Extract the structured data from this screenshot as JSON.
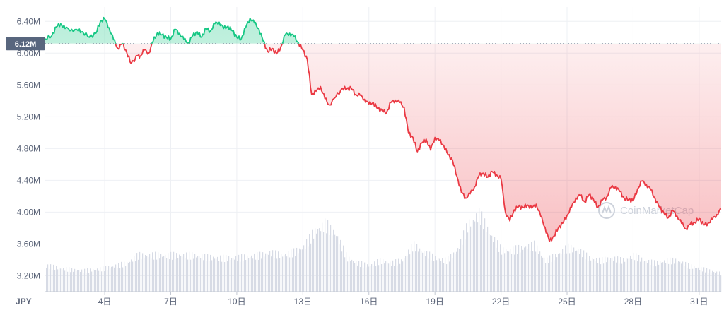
{
  "chart_data": {
    "type": "area",
    "currency_label": "JPY",
    "watermark": "CoinMarketCap",
    "y_ticks": [
      "6.40M",
      "6.00M",
      "5.60M",
      "5.20M",
      "4.80M",
      "4.40M",
      "4.00M",
      "3.60M",
      "3.20M"
    ],
    "y_tick_values": [
      6400000,
      6000000,
      5600000,
      5200000,
      4800000,
      4400000,
      4000000,
      3600000,
      3200000
    ],
    "x_ticks": [
      "4日",
      "7日",
      "10日",
      "13日",
      "16日",
      "19日",
      "22日",
      "25日",
      "28日",
      "31日"
    ],
    "x_tick_days": [
      4,
      7,
      10,
      13,
      16,
      19,
      22,
      25,
      28,
      31
    ],
    "xlim": [
      1.3,
      32.0
    ],
    "ylim": [
      3000000,
      6580000
    ],
    "baseline": {
      "label": "6.12M",
      "value": 6120000
    },
    "colors": {
      "up": "#16c784",
      "down": "#ea3943",
      "volume": "#d7dbe5",
      "grid": "#eef0f4",
      "badge": "#58667e"
    },
    "series": [
      {
        "x": [
          1.3,
          1.6,
          1.8,
          2.0,
          2.2,
          2.5,
          2.8,
          3.0,
          3.3,
          3.6,
          3.8,
          4.0,
          4.2,
          4.4,
          4.6,
          4.8,
          5.0,
          5.2,
          5.5,
          5.6,
          5.8,
          6.0,
          6.2,
          6.4,
          6.6,
          6.8,
          7.0,
          7.2,
          7.4,
          7.6,
          7.8,
          8.0,
          8.2,
          8.4,
          8.6,
          8.8,
          9.0,
          9.2,
          9.4,
          9.6,
          9.8,
          10.0,
          10.2,
          10.4,
          10.6,
          10.8,
          11.0,
          11.2,
          11.4,
          11.6,
          11.8,
          12.0,
          12.2,
          12.4,
          12.6,
          12.8,
          13.0,
          13.2,
          13.4,
          13.6,
          13.8,
          14.0,
          14.2,
          14.5,
          14.8,
          15.0,
          15.2,
          15.4,
          15.6,
          15.8,
          16.0,
          16.2,
          16.4,
          16.6,
          16.8,
          17.0,
          17.2,
          17.4,
          17.6,
          17.8,
          18.0,
          18.2,
          18.4,
          18.6,
          18.8,
          19.0,
          19.2,
          19.4,
          19.6,
          19.8,
          20.0,
          20.2,
          20.4,
          20.6,
          20.8,
          21.0,
          21.2,
          21.4,
          21.6,
          21.8,
          22.0,
          22.2,
          22.4,
          22.6,
          22.8,
          23.0,
          23.2,
          23.4,
          23.6,
          23.8,
          24.0,
          24.2,
          24.4,
          24.6,
          24.8,
          25.0,
          25.2,
          25.4,
          25.6,
          25.8,
          26.0,
          26.2,
          26.4,
          26.6,
          26.8,
          27.0,
          27.2,
          27.4,
          27.6,
          27.8,
          28.0,
          28.2,
          28.4,
          28.6,
          28.8,
          29.0,
          29.2,
          29.4,
          29.6,
          29.8,
          30.0,
          30.2,
          30.4,
          30.6,
          30.8,
          31.0,
          31.2,
          31.4,
          31.6,
          31.8,
          32.0
        ],
        "values": [
          6180000,
          6220000,
          6330000,
          6370000,
          6310000,
          6300000,
          6280000,
          6270000,
          6200000,
          6250000,
          6400000,
          6430000,
          6320000,
          6170000,
          6060000,
          6120000,
          6010000,
          5870000,
          5970000,
          5960000,
          6040000,
          6000000,
          6150000,
          6260000,
          6230000,
          6200000,
          6180000,
          6300000,
          6250000,
          6170000,
          6130000,
          6220000,
          6270000,
          6200000,
          6310000,
          6280000,
          6370000,
          6390000,
          6310000,
          6340000,
          6280000,
          6200000,
          6180000,
          6320000,
          6440000,
          6380000,
          6310000,
          6150000,
          6020000,
          6060000,
          5990000,
          6080000,
          6230000,
          6250000,
          6210000,
          6130000,
          6040000,
          5920000,
          5480000,
          5520000,
          5580000,
          5430000,
          5350000,
          5450000,
          5560000,
          5550000,
          5560000,
          5480000,
          5470000,
          5420000,
          5360000,
          5380000,
          5300000,
          5280000,
          5250000,
          5380000,
          5410000,
          5380000,
          5320000,
          4990000,
          4940000,
          4760000,
          4870000,
          4920000,
          4780000,
          4940000,
          4900000,
          4840000,
          4720000,
          4650000,
          4450000,
          4250000,
          4180000,
          4230000,
          4320000,
          4460000,
          4490000,
          4440000,
          4510000,
          4470000,
          4420000,
          4000000,
          3890000,
          4030000,
          4070000,
          4060000,
          4090000,
          4050000,
          4100000,
          3950000,
          3810000,
          3630000,
          3700000,
          3800000,
          3860000,
          3960000,
          4060000,
          4180000,
          4210000,
          4130000,
          4220000,
          4160000,
          4060000,
          4150000,
          4190000,
          4310000,
          4320000,
          4260000,
          4170000,
          4160000,
          4140000,
          4290000,
          4390000,
          4350000,
          4280000,
          4170000,
          4060000,
          3990000,
          3930000,
          4020000,
          3950000,
          3860000,
          3790000,
          3850000,
          3870000,
          3920000,
          3840000,
          3860000,
          3910000,
          3970000,
          4040000
        ]
      }
    ],
    "volume": {
      "x": [
        1.3,
        2.0,
        3.0,
        4.0,
        5.0,
        5.5,
        6.0,
        7.0,
        8.0,
        9.0,
        10.0,
        11.0,
        11.5,
        12.0,
        12.5,
        13.0,
        13.5,
        14.0,
        14.5,
        15.0,
        15.5,
        16.0,
        16.5,
        17.0,
        17.5,
        18.0,
        18.5,
        19.0,
        19.5,
        20.0,
        20.5,
        21.0,
        21.5,
        22.0,
        22.5,
        23.0,
        23.5,
        24.0,
        24.5,
        25.0,
        25.5,
        26.0,
        26.5,
        27.0,
        27.5,
        28.0,
        28.5,
        29.0,
        29.5,
        30.0,
        30.5,
        31.0,
        31.5,
        32.0
      ],
      "values": [
        0.1,
        0.09,
        0.08,
        0.09,
        0.11,
        0.14,
        0.14,
        0.14,
        0.14,
        0.13,
        0.13,
        0.14,
        0.15,
        0.14,
        0.15,
        0.17,
        0.23,
        0.26,
        0.22,
        0.13,
        0.11,
        0.1,
        0.12,
        0.11,
        0.12,
        0.18,
        0.15,
        0.13,
        0.12,
        0.16,
        0.26,
        0.3,
        0.22,
        0.16,
        0.16,
        0.17,
        0.18,
        0.12,
        0.14,
        0.17,
        0.16,
        0.13,
        0.12,
        0.13,
        0.12,
        0.14,
        0.12,
        0.11,
        0.12,
        0.12,
        0.1,
        0.09,
        0.08,
        0.07
      ]
    }
  }
}
